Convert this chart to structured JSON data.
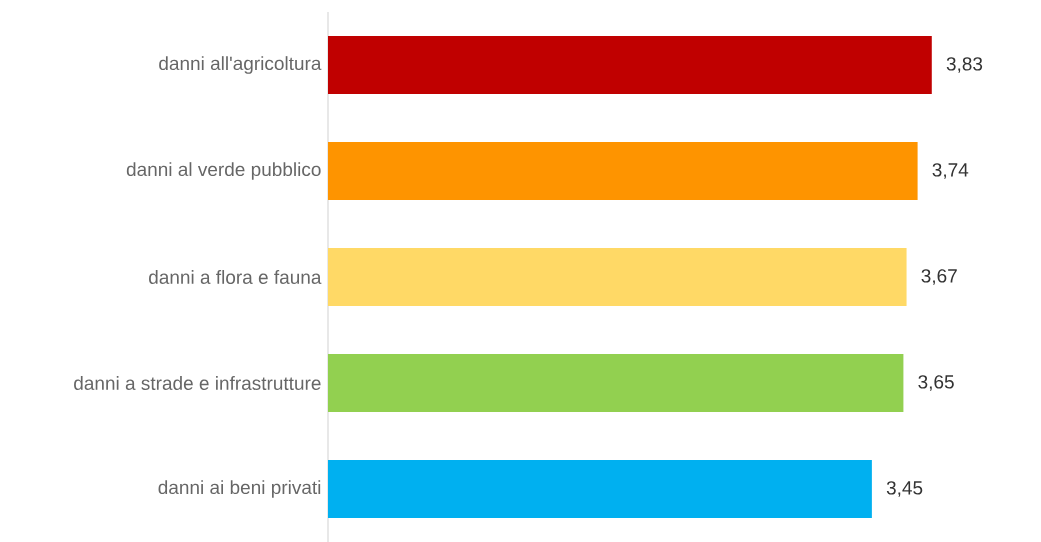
{
  "chart_data": {
    "type": "bar",
    "orientation": "horizontal",
    "categories": [
      "danni all'agricoltura",
      "danni al verde pubblico",
      "danni a flora e fauna",
      "danni a strade e infrastrutture",
      "danni ai beni privati"
    ],
    "values": [
      3.83,
      3.74,
      3.67,
      3.65,
      3.45
    ],
    "value_labels": [
      "3,83",
      "3,74",
      "3,67",
      "3,65",
      "3,45"
    ],
    "colors": [
      "#c00000",
      "#fe9400",
      "#ffd966",
      "#92d050",
      "#00b0f0"
    ]
  }
}
